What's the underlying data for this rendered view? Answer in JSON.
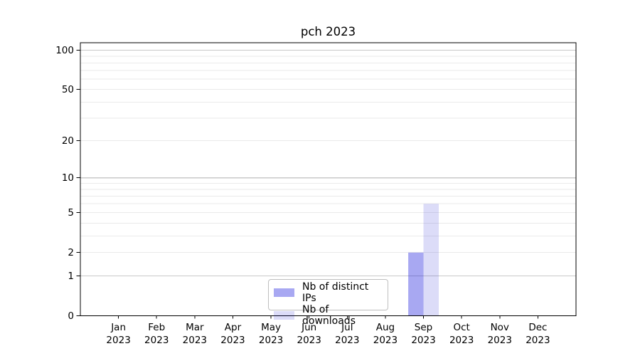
{
  "chart_data": {
    "type": "bar",
    "title": "pch 2023",
    "categories": [
      "Jan",
      "Feb",
      "Mar",
      "Apr",
      "May",
      "Jun",
      "Jul",
      "Aug",
      "Sep",
      "Oct",
      "Nov",
      "Dec"
    ],
    "category_year": "2023",
    "series": [
      {
        "name": "Nb of distinct IPs",
        "color": "rgba(6,6,218,0.35)",
        "values": [
          0,
          0,
          0,
          0,
          0,
          0,
          0,
          0,
          2,
          0,
          0,
          0
        ]
      },
      {
        "name": "Nb of downloads",
        "color": "rgba(22,22,208,0.15)",
        "values": [
          0,
          0,
          0,
          0,
          0,
          0,
          0,
          0,
          6,
          0,
          0,
          0
        ]
      }
    ],
    "yscale": "log1p",
    "ytick_labels": [
      0,
      1,
      2,
      5,
      10,
      20,
      50,
      100
    ],
    "major_gridlines": [
      1,
      10,
      100
    ],
    "minor_gridlines": [
      2,
      3,
      4,
      5,
      6,
      7,
      8,
      9,
      20,
      30,
      40,
      50,
      60,
      70,
      80,
      90
    ],
    "ylim": [
      0,
      114
    ],
    "xlabel": "",
    "ylabel": "",
    "legend_position": "lower center",
    "grid_major_color": "#c9c9c9",
    "grid_minor_color": "#eaeaea",
    "axis_color": "#000000"
  }
}
